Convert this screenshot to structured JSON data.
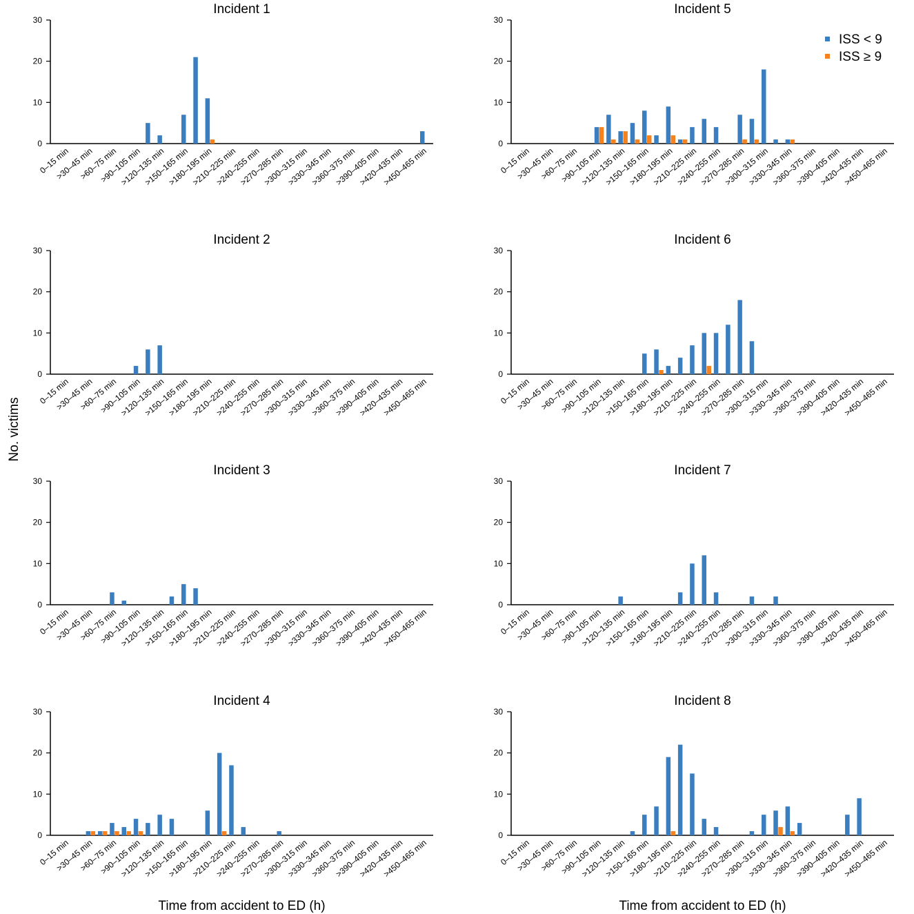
{
  "chart_data": [
    {
      "type": "bar",
      "title": "Incident 1",
      "ylabel": "No. victims",
      "categories": [
        "0–15 min",
        null,
        ">30–45 min",
        null,
        ">60–75 min",
        null,
        ">90–105 min",
        null,
        ">120–135 min",
        null,
        ">150–165 min",
        null,
        ">180–195 min",
        null,
        ">210–225 min",
        null,
        ">240–255 min",
        null,
        ">270–285 min",
        null,
        ">300–315 min",
        null,
        ">330–345 min",
        null,
        ">360–375 min",
        null,
        ">390–405 min",
        null,
        ">420–435 min",
        null,
        ">450–465 min"
      ],
      "series": [
        {
          "color": "#3a7ebf",
          "values": [
            0,
            0,
            0,
            0,
            0,
            0,
            0,
            5,
            2,
            0,
            7,
            21,
            11,
            0,
            0,
            0,
            0,
            0,
            0,
            0,
            0,
            0,
            0,
            0,
            0,
            0,
            0,
            0,
            0,
            0,
            3
          ]
        },
        {
          "color": "#f5821f",
          "values": [
            0,
            0,
            0,
            0,
            0,
            0,
            0,
            0,
            0,
            0,
            0,
            0,
            1,
            0,
            0,
            0,
            0,
            0,
            0,
            0,
            0,
            0,
            0,
            0,
            0,
            0,
            0,
            0,
            0,
            0,
            0
          ]
        }
      ],
      "ylim": [
        0,
        30
      ],
      "yticks": [
        0,
        10,
        20,
        30
      ]
    },
    {
      "type": "bar",
      "title": "Incident 2",
      "categories": [
        "0–15 min",
        null,
        ">30–45 min",
        null,
        ">60–75 min",
        null,
        ">90–105 min",
        null,
        ">120–135 min",
        null,
        ">150–165 min",
        null,
        ">180–195 min",
        null,
        ">210–225 min",
        null,
        ">240–255 min",
        null,
        ">270–285 min",
        null,
        ">300–315 min",
        null,
        ">330–345 min",
        null,
        ">360–375 min",
        null,
        ">390–405 min",
        null,
        ">420–435 min",
        null,
        ">450–465 min"
      ],
      "series": [
        {
          "color": "#3a7ebf",
          "values": [
            0,
            0,
            0,
            0,
            0,
            0,
            2,
            6,
            7,
            0,
            0,
            0,
            0,
            0,
            0,
            0,
            0,
            0,
            0,
            0,
            0,
            0,
            0,
            0,
            0,
            0,
            0,
            0,
            0,
            0,
            0
          ]
        }
      ],
      "ylim": [
        0,
        30
      ],
      "yticks": [
        0,
        10,
        20,
        30
      ]
    },
    {
      "type": "bar",
      "title": "Incident 3",
      "categories": [
        "0–15 min",
        null,
        ">30–45 min",
        null,
        ">60–75 min",
        null,
        ">90–105 min",
        null,
        ">120–135 min",
        null,
        ">150–165 min",
        null,
        ">180–195 min",
        null,
        ">210–225 min",
        null,
        ">240–255 min",
        null,
        ">270–285 min",
        null,
        ">300–315 min",
        null,
        ">330–345 min",
        null,
        ">360–375 min",
        null,
        ">390–405 min",
        null,
        ">420–435 min",
        null,
        ">450–465 min"
      ],
      "series": [
        {
          "color": "#3a7ebf",
          "values": [
            0,
            0,
            0,
            0,
            3,
            1,
            0,
            0,
            0,
            2,
            5,
            4,
            0,
            0,
            0,
            0,
            0,
            0,
            0,
            0,
            0,
            0,
            0,
            0,
            0,
            0,
            0,
            0,
            0,
            0,
            0
          ]
        }
      ],
      "ylim": [
        0,
        30
      ],
      "yticks": [
        0,
        10,
        20,
        30
      ]
    },
    {
      "type": "bar",
      "title": "Incident 4",
      "xlabel": "Time from accident to ED (h)",
      "categories": [
        "0–15 min",
        null,
        ">30–45 min",
        null,
        ">60–75 min",
        null,
        ">90–105 min",
        null,
        ">120–135 min",
        null,
        ">150–165 min",
        null,
        ">180–195 min",
        null,
        ">210–225 min",
        null,
        ">240–255 min",
        null,
        ">270–285 min",
        null,
        ">300–315 min",
        null,
        ">330–345 min",
        null,
        ">360–375 min",
        null,
        ">390–405 min",
        null,
        ">420–435 min",
        null,
        ">450–465 min"
      ],
      "series": [
        {
          "color": "#3a7ebf",
          "values": [
            0,
            0,
            1,
            1,
            3,
            2,
            4,
            3,
            5,
            4,
            0,
            0,
            6,
            20,
            17,
            2,
            0,
            0,
            1,
            0,
            0,
            0,
            0,
            0,
            0,
            0,
            0,
            0,
            0,
            0,
            0
          ]
        },
        {
          "color": "#f5821f",
          "values": [
            0,
            0,
            1,
            1,
            1,
            1,
            1,
            0,
            0,
            0,
            0,
            0,
            0,
            1,
            0,
            0,
            0,
            0,
            0,
            0,
            0,
            0,
            0,
            0,
            0,
            0,
            0,
            0,
            0,
            0,
            0
          ]
        }
      ],
      "ylim": [
        0,
        30
      ],
      "yticks": [
        0,
        10,
        20,
        30
      ]
    },
    {
      "type": "bar",
      "title": "Incident 5",
      "legend": "upper right",
      "categories": [
        "0–15 min",
        null,
        ">30–45 min",
        null,
        ">60–75 min",
        null,
        ">90–105 min",
        null,
        ">120–135 min",
        null,
        ">150–165 min",
        null,
        ">180–195 min",
        null,
        ">210–225 min",
        null,
        ">240–255 min",
        null,
        ">270–285 min",
        null,
        ">300–315 min",
        null,
        ">330–345 min",
        null,
        ">360–375 min",
        null,
        ">390–405 min",
        null,
        ">420–435 min",
        null,
        ">450–465 min"
      ],
      "series": [
        {
          "name": "ISS < 9",
          "color": "#3a7ebf",
          "values": [
            0,
            0,
            0,
            0,
            0,
            0,
            4,
            7,
            3,
            5,
            8,
            2,
            9,
            1,
            4,
            6,
            4,
            0,
            7,
            6,
            18,
            1,
            1,
            0,
            0,
            0,
            0,
            0,
            0,
            0,
            0
          ]
        },
        {
          "name": "ISS  ≥ 9",
          "color": "#f5821f",
          "values": [
            0,
            0,
            0,
            0,
            0,
            0,
            4,
            1,
            3,
            1,
            2,
            0,
            2,
            1,
            0,
            0,
            0,
            0,
            1,
            1,
            0,
            0,
            1,
            0,
            0,
            0,
            0,
            0,
            0,
            0,
            0
          ]
        }
      ],
      "ylim": [
        0,
        30
      ],
      "yticks": [
        0,
        10,
        20,
        30
      ]
    },
    {
      "type": "bar",
      "title": "Incident 6",
      "categories": [
        "0–15 min",
        null,
        ">30–45 min",
        null,
        ">60–75 min",
        null,
        ">90–105 min",
        null,
        ">120–135 min",
        null,
        ">150–165 min",
        null,
        ">180–195 min",
        null,
        ">210–225 min",
        null,
        ">240–255 min",
        null,
        ">270–285 min",
        null,
        ">300–315 min",
        null,
        ">330–345 min",
        null,
        ">360–375 min",
        null,
        ">390–405 min",
        null,
        ">420–435 min",
        null,
        ">450–465 min"
      ],
      "series": [
        {
          "color": "#3a7ebf",
          "values": [
            0,
            0,
            0,
            0,
            0,
            0,
            0,
            0,
            0,
            0,
            5,
            6,
            2,
            4,
            7,
            10,
            10,
            12,
            18,
            8,
            0,
            0,
            0,
            0,
            0,
            0,
            0,
            0,
            0,
            0,
            0
          ]
        },
        {
          "color": "#f5821f",
          "values": [
            0,
            0,
            0,
            0,
            0,
            0,
            0,
            0,
            0,
            0,
            0,
            1,
            0,
            0,
            0,
            2,
            0,
            0,
            0,
            0,
            0,
            0,
            0,
            0,
            0,
            0,
            0,
            0,
            0,
            0,
            0
          ]
        }
      ],
      "ylim": [
        0,
        30
      ],
      "yticks": [
        0,
        10,
        20,
        30
      ]
    },
    {
      "type": "bar",
      "title": "Incident 7",
      "categories": [
        "0–15 min",
        null,
        ">30–45 min",
        null,
        ">60–75 min",
        null,
        ">90–105 min",
        null,
        ">120–135 min",
        null,
        ">150–165 min",
        null,
        ">180–195 min",
        null,
        ">210–225 min",
        null,
        ">240–255 min",
        null,
        ">270–285 min",
        null,
        ">300–315 min",
        null,
        ">330–345 min",
        null,
        ">360–375 min",
        null,
        ">390–405 min",
        null,
        ">420–435 min",
        null,
        ">450–465 min"
      ],
      "series": [
        {
          "color": "#3a7ebf",
          "values": [
            0,
            0,
            0,
            0,
            0,
            0,
            0,
            0,
            2,
            0,
            0,
            0,
            0,
            3,
            10,
            12,
            3,
            0,
            0,
            2,
            0,
            2,
            0,
            0,
            0,
            0,
            0,
            0,
            0,
            0,
            0
          ]
        }
      ],
      "ylim": [
        0,
        30
      ],
      "yticks": [
        0,
        10,
        20,
        30
      ]
    },
    {
      "type": "bar",
      "title": "Incident 8",
      "xlabel": "Time from accident to ED (h)",
      "categories": [
        "0–15 min",
        null,
        ">30–45 min",
        null,
        ">60–75 min",
        null,
        ">90–105 min",
        null,
        ">120–135 min",
        null,
        ">150–165 min",
        null,
        ">180–195 min",
        null,
        ">210–225 min",
        null,
        ">240–255 min",
        null,
        ">270–285 min",
        null,
        ">300–315 min",
        null,
        ">330–345 min",
        null,
        ">360–375 min",
        null,
        ">390–405 min",
        null,
        ">420–435 min",
        null,
        ">450–465 min"
      ],
      "series": [
        {
          "color": "#3a7ebf",
          "values": [
            0,
            0,
            0,
            0,
            0,
            0,
            0,
            0,
            0,
            1,
            5,
            7,
            19,
            22,
            15,
            4,
            2,
            0,
            0,
            1,
            5,
            6,
            7,
            3,
            0,
            0,
            0,
            5,
            9,
            0,
            0
          ]
        },
        {
          "color": "#f5821f",
          "values": [
            0,
            0,
            0,
            0,
            0,
            0,
            0,
            0,
            0,
            0,
            0,
            0,
            1,
            0,
            0,
            0,
            0,
            0,
            0,
            0,
            0,
            2,
            1,
            0,
            0,
            0,
            0,
            0,
            0,
            0,
            0
          ]
        }
      ],
      "ylim": [
        0,
        30
      ],
      "yticks": [
        0,
        10,
        20,
        30
      ]
    }
  ]
}
